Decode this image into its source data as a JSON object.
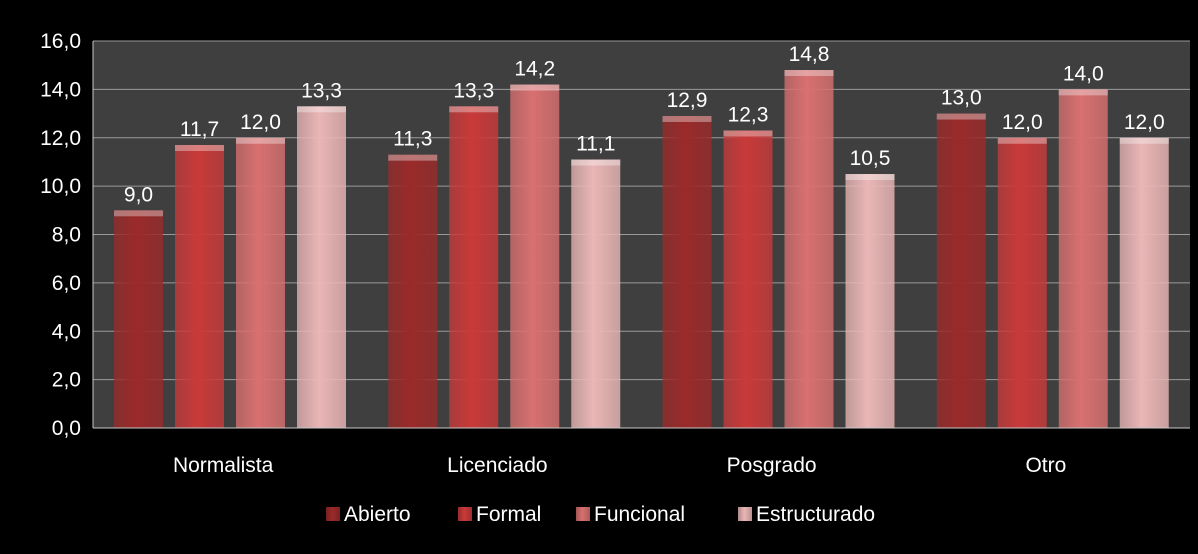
{
  "chart_data": {
    "type": "bar",
    "categories": [
      "Normalista",
      "Licenciado",
      "Posgrado",
      "Otro"
    ],
    "series": [
      {
        "name": "Abierto",
        "values": [
          9.0,
          11.3,
          12.9,
          13.0
        ],
        "labels": [
          "9,0",
          "11,3",
          "12,9",
          "13,0"
        ],
        "color": "#9b2a2a"
      },
      {
        "name": "Formal",
        "values": [
          11.7,
          13.3,
          12.3,
          12.0
        ],
        "labels": [
          "11,7",
          "13,3",
          "12,3",
          "12,0"
        ],
        "color": "#c93a3a"
      },
      {
        "name": "Funcional",
        "values": [
          12.0,
          14.2,
          14.8,
          14.0
        ],
        "labels": [
          "12,0",
          "14,2",
          "14,8",
          "14,0"
        ],
        "color": "#d97070"
      },
      {
        "name": "Estructurado",
        "values": [
          13.3,
          11.1,
          10.5,
          12.0
        ],
        "labels": [
          "13,3",
          "11,1",
          "10,5",
          "12,0"
        ],
        "color": "#eab6b6"
      }
    ],
    "y_ticks": [
      "0,0",
      "2,0",
      "4,0",
      "6,0",
      "8,0",
      "10,0",
      "12,0",
      "14,0",
      "16,0"
    ],
    "ylim": [
      0,
      16
    ],
    "title": "",
    "xlabel": "",
    "ylabel": "",
    "grid": true,
    "legend_position": "bottom",
    "colors": {
      "background": "#000000",
      "plot_area": "#3f3f3f",
      "gridline": "#9a9a9a",
      "text": "#ffffff"
    }
  }
}
